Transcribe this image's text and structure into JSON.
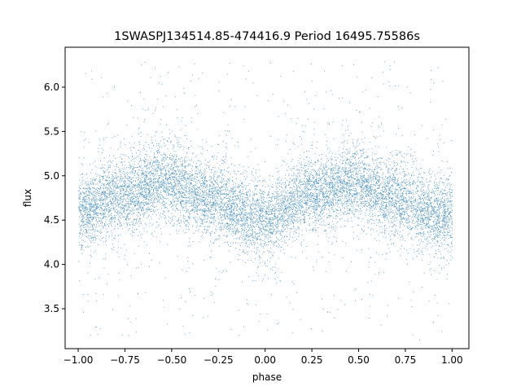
{
  "chart_data": {
    "type": "scatter",
    "title": "1SWASPJ134514.85-474416.9 Period 16495.75586s",
    "xlabel": "phase",
    "ylabel": "flux",
    "xlim": [
      -1.07,
      1.09
    ],
    "ylim": [
      3.05,
      6.45
    ],
    "xticks": [
      -1.0,
      -0.75,
      -0.5,
      -0.25,
      0.0,
      0.25,
      0.5,
      0.75,
      1.0
    ],
    "xtick_labels": [
      "−1.00",
      "−0.75",
      "−0.50",
      "−0.25",
      "0.00",
      "0.25",
      "0.50",
      "0.75",
      "1.00"
    ],
    "yticks": [
      3.5,
      4.0,
      4.5,
      5.0,
      5.5,
      6.0
    ],
    "ytick_labels": [
      "3.5",
      "4.0",
      "4.5",
      "5.0",
      "5.5",
      "6.0"
    ],
    "grid": false,
    "marker_color": "#1f77b4",
    "series": [
      {
        "x_range": [
          -1.0,
          1.0
        ],
        "curve": {
          "phase": [
            -1.0,
            -0.75,
            -0.55,
            -0.3,
            -0.05,
            0.0,
            0.25,
            0.45,
            0.7,
            0.95,
            1.0
          ],
          "flux": [
            4.6,
            4.8,
            4.93,
            4.75,
            4.52,
            4.52,
            4.8,
            4.93,
            4.75,
            4.55,
            4.57
          ]
        },
        "core_scatter_sigma": 0.2,
        "outlier_flux_range": [
          3.2,
          6.3
        ]
      }
    ]
  }
}
